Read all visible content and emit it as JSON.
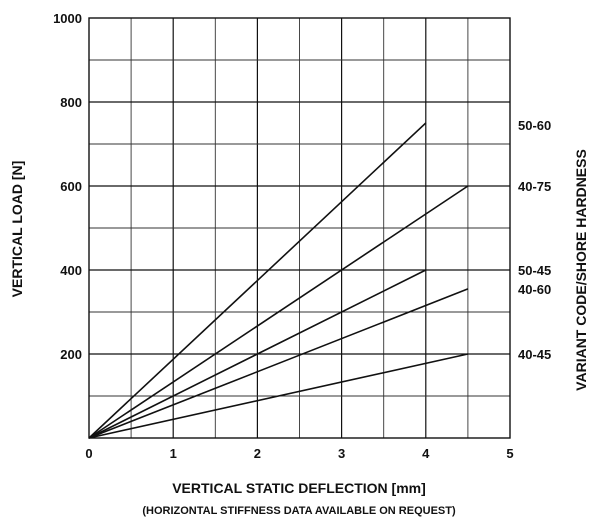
{
  "chart_data": {
    "type": "line",
    "xlabel": "VERTICAL STATIC DEFLECTION [mm]",
    "ylabel": "VERTICAL LOAD [N]",
    "y2label": "VARIANT CODE/SHORE HARDNESS",
    "note": "(HORIZONTAL STIFFNESS DATA AVAILABLE ON REQUEST)",
    "xlim": [
      0,
      5
    ],
    "ylim": [
      0,
      1000
    ],
    "x_ticks": [
      "0",
      "1",
      "2",
      "3",
      "4",
      "5"
    ],
    "y_ticks": [
      "200",
      "400",
      "600",
      "800",
      "1000"
    ],
    "x_tick_values": [
      0,
      1,
      2,
      3,
      4,
      5
    ],
    "y_tick_values": [
      200,
      400,
      600,
      800,
      1000
    ],
    "grid": true,
    "series": [
      {
        "name": "50-60",
        "x": [
          0,
          4.0
        ],
        "y": [
          0,
          750
        ]
      },
      {
        "name": "40-75",
        "x": [
          0,
          4.5
        ],
        "y": [
          0,
          600
        ]
      },
      {
        "name": "50-45",
        "x": [
          0,
          4.0
        ],
        "y": [
          0,
          400
        ]
      },
      {
        "name": "40-60",
        "x": [
          0,
          4.5
        ],
        "y": [
          0,
          355
        ]
      },
      {
        "name": "40-45",
        "x": [
          0,
          4.5
        ],
        "y": [
          0,
          200
        ]
      }
    ],
    "variant_labels": [
      {
        "text": "50-60",
        "y": 745
      },
      {
        "text": "40-75",
        "y": 600
      },
      {
        "text": "50-45",
        "y": 400
      },
      {
        "text": "40-60",
        "y": 355
      },
      {
        "text": "40-45",
        "y": 200
      }
    ]
  }
}
